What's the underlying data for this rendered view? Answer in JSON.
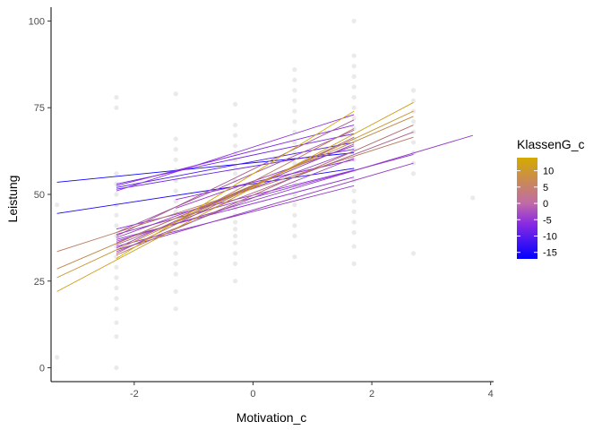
{
  "chart_data": {
    "type": "scatter",
    "title": "",
    "xlabel": "Motivation_c",
    "ylabel": "Leistung",
    "xlim": [
      -3.4,
      4.05
    ],
    "ylim": [
      -4,
      104
    ],
    "xticks": [
      -2,
      0,
      2,
      4
    ],
    "yticks": [
      0,
      25,
      50,
      75,
      100
    ],
    "grid": false,
    "legend": {
      "title": "KlassenG_c",
      "placement": "right",
      "colorbar_labels": [
        10,
        5,
        0,
        -5,
        -10,
        -15
      ],
      "range": [
        -17,
        14
      ],
      "color_low": "#0000FF",
      "color_mid": "#8A2BE2",
      "color_high": "#D4AA00"
    },
    "point_color": "#d9d9d9",
    "points": [
      {
        "x": -3.3,
        "y": 47
      },
      {
        "x": -3.3,
        "y": 3
      },
      {
        "x": -2.3,
        "y": 78
      },
      {
        "x": -2.3,
        "y": 75
      },
      {
        "x": -2.3,
        "y": 56
      },
      {
        "x": -2.3,
        "y": 53
      },
      {
        "x": -2.3,
        "y": 50
      },
      {
        "x": -2.3,
        "y": 47
      },
      {
        "x": -2.3,
        "y": 44
      },
      {
        "x": -2.3,
        "y": 41
      },
      {
        "x": -2.3,
        "y": 38
      },
      {
        "x": -2.3,
        "y": 35
      },
      {
        "x": -2.3,
        "y": 32
      },
      {
        "x": -2.3,
        "y": 29
      },
      {
        "x": -2.3,
        "y": 26
      },
      {
        "x": -2.3,
        "y": 23
      },
      {
        "x": -2.3,
        "y": 20
      },
      {
        "x": -2.3,
        "y": 17
      },
      {
        "x": -2.3,
        "y": 13
      },
      {
        "x": -2.3,
        "y": 9
      },
      {
        "x": -2.3,
        "y": 0
      },
      {
        "x": -1.3,
        "y": 79
      },
      {
        "x": -1.3,
        "y": 66
      },
      {
        "x": -1.3,
        "y": 63
      },
      {
        "x": -1.3,
        "y": 60
      },
      {
        "x": -1.3,
        "y": 57
      },
      {
        "x": -1.3,
        "y": 54
      },
      {
        "x": -1.3,
        "y": 51
      },
      {
        "x": -1.3,
        "y": 48
      },
      {
        "x": -1.3,
        "y": 45
      },
      {
        "x": -1.3,
        "y": 42
      },
      {
        "x": -1.3,
        "y": 39
      },
      {
        "x": -1.3,
        "y": 36
      },
      {
        "x": -1.3,
        "y": 33
      },
      {
        "x": -1.3,
        "y": 30
      },
      {
        "x": -1.3,
        "y": 27
      },
      {
        "x": -1.3,
        "y": 22
      },
      {
        "x": -1.3,
        "y": 17
      },
      {
        "x": -0.3,
        "y": 76
      },
      {
        "x": -0.3,
        "y": 70
      },
      {
        "x": -0.3,
        "y": 67
      },
      {
        "x": -0.3,
        "y": 64
      },
      {
        "x": -0.3,
        "y": 62
      },
      {
        "x": -0.3,
        "y": 60
      },
      {
        "x": -0.3,
        "y": 58
      },
      {
        "x": -0.3,
        "y": 56
      },
      {
        "x": -0.3,
        "y": 54
      },
      {
        "x": -0.3,
        "y": 52
      },
      {
        "x": -0.3,
        "y": 50
      },
      {
        "x": -0.3,
        "y": 48
      },
      {
        "x": -0.3,
        "y": 46
      },
      {
        "x": -0.3,
        "y": 44
      },
      {
        "x": -0.3,
        "y": 42
      },
      {
        "x": -0.3,
        "y": 40
      },
      {
        "x": -0.3,
        "y": 38
      },
      {
        "x": -0.3,
        "y": 36
      },
      {
        "x": -0.3,
        "y": 33
      },
      {
        "x": -0.3,
        "y": 30
      },
      {
        "x": -0.3,
        "y": 25
      },
      {
        "x": 0.7,
        "y": 86
      },
      {
        "x": 0.7,
        "y": 83
      },
      {
        "x": 0.7,
        "y": 80
      },
      {
        "x": 0.7,
        "y": 77
      },
      {
        "x": 0.7,
        "y": 74
      },
      {
        "x": 0.7,
        "y": 71
      },
      {
        "x": 0.7,
        "y": 68
      },
      {
        "x": 0.7,
        "y": 65
      },
      {
        "x": 0.7,
        "y": 62
      },
      {
        "x": 0.7,
        "y": 59
      },
      {
        "x": 0.7,
        "y": 56
      },
      {
        "x": 0.7,
        "y": 53
      },
      {
        "x": 0.7,
        "y": 50
      },
      {
        "x": 0.7,
        "y": 47
      },
      {
        "x": 0.7,
        "y": 44
      },
      {
        "x": 0.7,
        "y": 41
      },
      {
        "x": 0.7,
        "y": 38
      },
      {
        "x": 0.7,
        "y": 32
      },
      {
        "x": 1.7,
        "y": 100
      },
      {
        "x": 1.7,
        "y": 90
      },
      {
        "x": 1.7,
        "y": 87
      },
      {
        "x": 1.7,
        "y": 84
      },
      {
        "x": 1.7,
        "y": 81
      },
      {
        "x": 1.7,
        "y": 78
      },
      {
        "x": 1.7,
        "y": 75
      },
      {
        "x": 1.7,
        "y": 72
      },
      {
        "x": 1.7,
        "y": 69
      },
      {
        "x": 1.7,
        "y": 66
      },
      {
        "x": 1.7,
        "y": 63
      },
      {
        "x": 1.7,
        "y": 60
      },
      {
        "x": 1.7,
        "y": 57
      },
      {
        "x": 1.7,
        "y": 54
      },
      {
        "x": 1.7,
        "y": 51
      },
      {
        "x": 1.7,
        "y": 48
      },
      {
        "x": 1.7,
        "y": 45
      },
      {
        "x": 1.7,
        "y": 42
      },
      {
        "x": 1.7,
        "y": 39
      },
      {
        "x": 1.7,
        "y": 35
      },
      {
        "x": 1.7,
        "y": 30
      },
      {
        "x": 2.7,
        "y": 80
      },
      {
        "x": 2.7,
        "y": 77
      },
      {
        "x": 2.7,
        "y": 74
      },
      {
        "x": 2.7,
        "y": 71
      },
      {
        "x": 2.7,
        "y": 68
      },
      {
        "x": 2.7,
        "y": 65
      },
      {
        "x": 2.7,
        "y": 62
      },
      {
        "x": 2.7,
        "y": 59
      },
      {
        "x": 2.7,
        "y": 56
      },
      {
        "x": 2.7,
        "y": 33
      },
      {
        "x": 3.7,
        "y": 49
      }
    ],
    "series": [
      {
        "x": [
          -3.3,
          1.7
        ],
        "y": [
          53.5,
          62.0
        ],
        "g": -16
      },
      {
        "x": [
          -3.3,
          1.7
        ],
        "y": [
          44.5,
          57.5
        ],
        "g": -15
      },
      {
        "x": [
          -2.3,
          1.7
        ],
        "y": [
          52.0,
          65.0
        ],
        "g": -11
      },
      {
        "x": [
          -2.3,
          1.7
        ],
        "y": [
          51.5,
          63.0
        ],
        "g": -9
      },
      {
        "x": [
          -2.3,
          1.7
        ],
        "y": [
          53.0,
          67.5
        ],
        "g": -8
      },
      {
        "x": [
          -2.3,
          1.7
        ],
        "y": [
          52.5,
          70.0
        ],
        "g": -7
      },
      {
        "x": [
          -2.3,
          1.7
        ],
        "y": [
          51.0,
          73.0
        ],
        "g": -6
      },
      {
        "x": [
          -2.3,
          1.7
        ],
        "y": [
          40.0,
          57.0
        ],
        "g": -6
      },
      {
        "x": [
          -2.3,
          1.7
        ],
        "y": [
          37.0,
          55.0
        ],
        "g": -5
      },
      {
        "x": [
          -2.3,
          1.7
        ],
        "y": [
          35.0,
          52.5
        ],
        "g": -4
      },
      {
        "x": [
          -2.3,
          1.7
        ],
        "y": [
          37.5,
          62.5
        ],
        "g": -3
      },
      {
        "x": [
          -2.3,
          1.7
        ],
        "y": [
          36.0,
          64.5
        ],
        "g": -2
      },
      {
        "x": [
          -2.3,
          1.7
        ],
        "y": [
          34.5,
          66.0
        ],
        "g": -2
      },
      {
        "x": [
          -2.3,
          1.7
        ],
        "y": [
          33.5,
          60.5
        ],
        "g": -1
      },
      {
        "x": [
          -2.3,
          1.7
        ],
        "y": [
          39.0,
          68.5
        ],
        "g": 0
      },
      {
        "x": [
          -2.3,
          1.7
        ],
        "y": [
          38.0,
          71.5
        ],
        "g": 1
      },
      {
        "x": [
          -2.3,
          1.7
        ],
        "y": [
          33.0,
          66.5
        ],
        "g": 3
      },
      {
        "x": [
          -2.3,
          2.7
        ],
        "y": [
          38.5,
          61.5
        ],
        "g": -4
      },
      {
        "x": [
          -2.3,
          2.7
        ],
        "y": [
          34.0,
          59.0
        ],
        "g": -3
      },
      {
        "x": [
          -2.3,
          3.7
        ],
        "y": [
          36.5,
          67.0
        ],
        "g": -4
      },
      {
        "x": [
          -2.3,
          2.7
        ],
        "y": [
          35.5,
          68.0
        ],
        "g": 2
      },
      {
        "x": [
          -2.3,
          2.7
        ],
        "y": [
          32.5,
          70.0
        ],
        "g": 4
      },
      {
        "x": [
          -1.3,
          1.7
        ],
        "y": [
          48.5,
          60.0
        ],
        "g": -6
      },
      {
        "x": [
          -1.3,
          1.7
        ],
        "y": [
          46.0,
          64.0
        ],
        "g": -3
      },
      {
        "x": [
          -1.3,
          1.7
        ],
        "y": [
          42.0,
          69.0
        ],
        "g": 6
      },
      {
        "x": [
          -3.3,
          2.7
        ],
        "y": [
          33.5,
          66.5
        ],
        "g": 6
      },
      {
        "x": [
          -3.3,
          2.7
        ],
        "y": [
          28.5,
          72.5
        ],
        "g": 8
      },
      {
        "x": [
          -3.3,
          2.7
        ],
        "y": [
          26.0,
          74.0
        ],
        "g": 10
      },
      {
        "x": [
          -3.3,
          2.7
        ],
        "y": [
          22.0,
          76.5
        ],
        "g": 12
      },
      {
        "x": [
          -2.3,
          1.7
        ],
        "y": [
          31.5,
          74.0
        ],
        "g": 14
      }
    ]
  }
}
